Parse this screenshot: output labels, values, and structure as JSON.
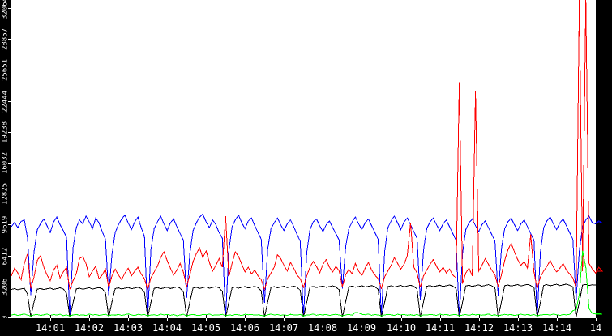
{
  "chart_data": {
    "type": "line",
    "title": "",
    "xlabel": "",
    "ylabel": "",
    "x_axis": {
      "start_time": "14:00",
      "tick_interval": "1 minute",
      "tick_labels": [
        "14:01",
        "14:02",
        "14:03",
        "14:04",
        "14:05",
        "14:06",
        "14:07",
        "14:08",
        "14:09",
        "14:10",
        "14:11",
        "14:12",
        "14:13",
        "14:14",
        "14"
      ]
    },
    "y_axis": {
      "min": 0,
      "max": 32064,
      "tick_labels": [
        "0",
        "3206",
        "6412",
        "9619",
        "12825",
        "16032",
        "19238",
        "22444",
        "25651",
        "28857",
        "32064"
      ]
    },
    "grid": "off",
    "legend": "none",
    "sample_interval_seconds": 5,
    "colors": {
      "frame_bg": "#000000",
      "plot_bg": "#ffffff",
      "axis_text": "#ffffff",
      "series_blue": "#0000ff",
      "series_red": "#ff0000",
      "series_black": "#000000",
      "series_green": "#00ff00"
    },
    "series": [
      {
        "name": "blue",
        "color": "#0000ff",
        "values": [
          9400,
          9850,
          9300,
          9950,
          10100,
          8200,
          2300,
          6800,
          9100,
          9700,
          10200,
          9500,
          8800,
          9900,
          10400,
          9600,
          9000,
          8300,
          100,
          7200,
          9300,
          10100,
          9700,
          10500,
          9900,
          9200,
          10300,
          9800,
          8900,
          8100,
          2300,
          6500,
          8800,
          9600,
          10200,
          10600,
          9800,
          9100,
          9900,
          10400,
          9300,
          8400,
          100,
          7000,
          9200,
          9900,
          10500,
          9700,
          9000,
          9800,
          10200,
          9400,
          8700,
          8000,
          2000,
          6600,
          9000,
          9800,
          10400,
          10700,
          9900,
          9300,
          10100,
          9600,
          8800,
          8200,
          0,
          6900,
          9400,
          10100,
          10600,
          9800,
          9200,
          10000,
          10300,
          9500,
          8800,
          8100,
          1500,
          7100,
          9200,
          9800,
          10300,
          9600,
          9000,
          9700,
          10100,
          9400,
          8600,
          7900,
          0,
          6700,
          9100,
          9900,
          10200,
          9500,
          8900,
          9600,
          10000,
          9300,
          8700,
          8000,
          3000,
          7300,
          9200,
          9900,
          10400,
          9700,
          9100,
          9800,
          10200,
          9500,
          8800,
          8100,
          0,
          6800,
          9300,
          10000,
          10500,
          9800,
          9100,
          9900,
          10300,
          9600,
          8900,
          8200,
          1800,
          7000,
          9200,
          9900,
          10300,
          9600,
          9000,
          9700,
          10100,
          9400,
          8700,
          8000,
          0,
          6600,
          9100,
          9800,
          10200,
          9500,
          8900,
          9600,
          10000,
          9300,
          8600,
          7900,
          2200,
          7100,
          9200,
          9900,
          10300,
          9600,
          9000,
          9700,
          10100,
          9400,
          8700,
          8000,
          0,
          6800,
          9300,
          10000,
          10400,
          9700,
          9100,
          9800,
          10200,
          9500,
          8800,
          8100,
          1800,
          6900,
          9400,
          10100,
          10500,
          9800,
          9700,
          10000,
          9800
        ]
      },
      {
        "name": "red",
        "color": "#ff0000",
        "values": [
          4300,
          5100,
          4600,
          3900,
          5600,
          6600,
          3000,
          4200,
          5900,
          6400,
          5200,
          4400,
          3800,
          4900,
          5400,
          4100,
          4700,
          5200,
          2900,
          3800,
          4500,
          6100,
          6300,
          5600,
          4200,
          4800,
          5300,
          4000,
          4400,
          5000,
          3100,
          4300,
          5000,
          4400,
          3900,
          4600,
          5100,
          4300,
          4800,
          5200,
          4500,
          4000,
          2900,
          4100,
          4700,
          5300,
          6200,
          6800,
          5900,
          5100,
          4400,
          4900,
          5600,
          4700,
          3200,
          4400,
          5800,
          6600,
          7200,
          6200,
          6900,
          5700,
          4800,
          5400,
          6100,
          5200,
          10500,
          4200,
          5600,
          6800,
          6300,
          5500,
          4700,
          5200,
          4500,
          4900,
          4300,
          3900,
          2900,
          4000,
          4600,
          5200,
          6500,
          6100,
          5400,
          4800,
          5700,
          5100,
          4400,
          4000,
          3100,
          4300,
          5200,
          5800,
          5300,
          4600,
          5500,
          6000,
          5200,
          4700,
          5300,
          4800,
          3200,
          4400,
          5000,
          4500,
          5600,
          4800,
          4300,
          5100,
          5700,
          4900,
          4400,
          4000,
          3000,
          4200,
          4800,
          5400,
          6200,
          5600,
          5000,
          5500,
          6400,
          9800,
          5200,
          4600,
          3100,
          4300,
          4900,
          5500,
          6000,
          5300,
          4700,
          5200,
          4600,
          5000,
          4400,
          4100,
          24400,
          3500,
          4600,
          5100,
          4300,
          23400,
          4800,
          5400,
          6100,
          5500,
          4900,
          4400,
          3200,
          4400,
          5900,
          7000,
          7700,
          6800,
          6000,
          5400,
          5800,
          5100,
          8600,
          4700,
          3000,
          4200,
          4800,
          5300,
          5900,
          5200,
          4700,
          5100,
          5600,
          4900,
          4500,
          4100,
          3100,
          33000,
          4800,
          33000,
          5600,
          5000,
          4600,
          5200,
          4800
        ]
      },
      {
        "name": "black",
        "color": "#000000",
        "values": [
          2900,
          2980,
          2860,
          2950,
          3020,
          2400,
          0,
          1600,
          2920,
          3000,
          2880,
          2960,
          3040,
          2900,
          2980,
          3060,
          2940,
          2500,
          0,
          1500,
          2950,
          3030,
          2910,
          2990,
          3070,
          2930,
          3010,
          3090,
          2970,
          2550,
          0,
          1600,
          2980,
          3060,
          2940,
          3020,
          3100,
          2960,
          3040,
          3120,
          3000,
          2600,
          0,
          1550,
          3010,
          3090,
          2970,
          3050,
          3130,
          2990,
          3070,
          3150,
          3030,
          2650,
          0,
          1600,
          3040,
          3120,
          3000,
          3080,
          3160,
          3020,
          3100,
          3180,
          3060,
          2700,
          0,
          1550,
          3070,
          3150,
          3030,
          3110,
          3190,
          3050,
          3130,
          3210,
          3090,
          2750,
          0,
          1600,
          3100,
          3180,
          3060,
          3140,
          3220,
          3080,
          3160,
          3240,
          3120,
          2800,
          0,
          1550,
          3130,
          3210,
          3090,
          3170,
          3250,
          3110,
          3190,
          3270,
          3150,
          2850,
          0,
          1600,
          3160,
          3240,
          3120,
          3200,
          3280,
          3140,
          3220,
          3300,
          3180,
          2900,
          0,
          1550,
          3190,
          3270,
          3150,
          3230,
          3310,
          3170,
          3250,
          3330,
          3210,
          2950,
          0,
          1600,
          3220,
          3300,
          3180,
          3260,
          3340,
          3200,
          3280,
          3360,
          3240,
          3000,
          0,
          1550,
          3250,
          3330,
          3210,
          3290,
          3370,
          3230,
          3310,
          3390,
          3270,
          3050,
          0,
          1600,
          3280,
          3360,
          3240,
          3320,
          3400,
          3260,
          3340,
          3420,
          3300,
          3100,
          0,
          1550,
          3310,
          3390,
          3270,
          3350,
          3430,
          3290,
          3370,
          3450,
          3330,
          3150,
          0,
          1600,
          3340,
          3420,
          3300,
          3380,
          3360,
          3300,
          3340
        ]
      },
      {
        "name": "green",
        "color": "#00ff00",
        "values": [
          240,
          320,
          190,
          280,
          360,
          230,
          150,
          260,
          300,
          200,
          270,
          340,
          210,
          290,
          250,
          330,
          180,
          260,
          140,
          250,
          310,
          220,
          280,
          190,
          350,
          240,
          300,
          210,
          270,
          330,
          160,
          270,
          230,
          310,
          200,
          280,
          360,
          250,
          190,
          320,
          260,
          300,
          150,
          240,
          280,
          200,
          340,
          260,
          310,
          220,
          290,
          180,
          250,
          330,
          140,
          260,
          300,
          230,
          190,
          310,
          270,
          350,
          210,
          280,
          240,
          320,
          160,
          250,
          220,
          300,
          260,
          190,
          330,
          270,
          310,
          230,
          280,
          200,
          150,
          270,
          340,
          250,
          300,
          210,
          270,
          190,
          320,
          260,
          230,
          310,
          140,
          240,
          280,
          350,
          220,
          290,
          250,
          310,
          200,
          270,
          330,
          240,
          160,
          260,
          300,
          230,
          520,
          480,
          310,
          270,
          350,
          220,
          290,
          250,
          150,
          250,
          310,
          270,
          200,
          330,
          260,
          300,
          230,
          280,
          190,
          320,
          140,
          260,
          240,
          300,
          270,
          210,
          340,
          250,
          310,
          220,
          280,
          300,
          160,
          240,
          290,
          200,
          330,
          260,
          300,
          230,
          270,
          350,
          210,
          280,
          150,
          250,
          320,
          260,
          300,
          190,
          270,
          330,
          240,
          290,
          210,
          300,
          140,
          260,
          280,
          310,
          230,
          350,
          270,
          200,
          300,
          260,
          320,
          700,
          800,
          2400,
          6900,
          5200,
          900,
          420,
          350,
          400,
          320
        ]
      }
    ]
  }
}
